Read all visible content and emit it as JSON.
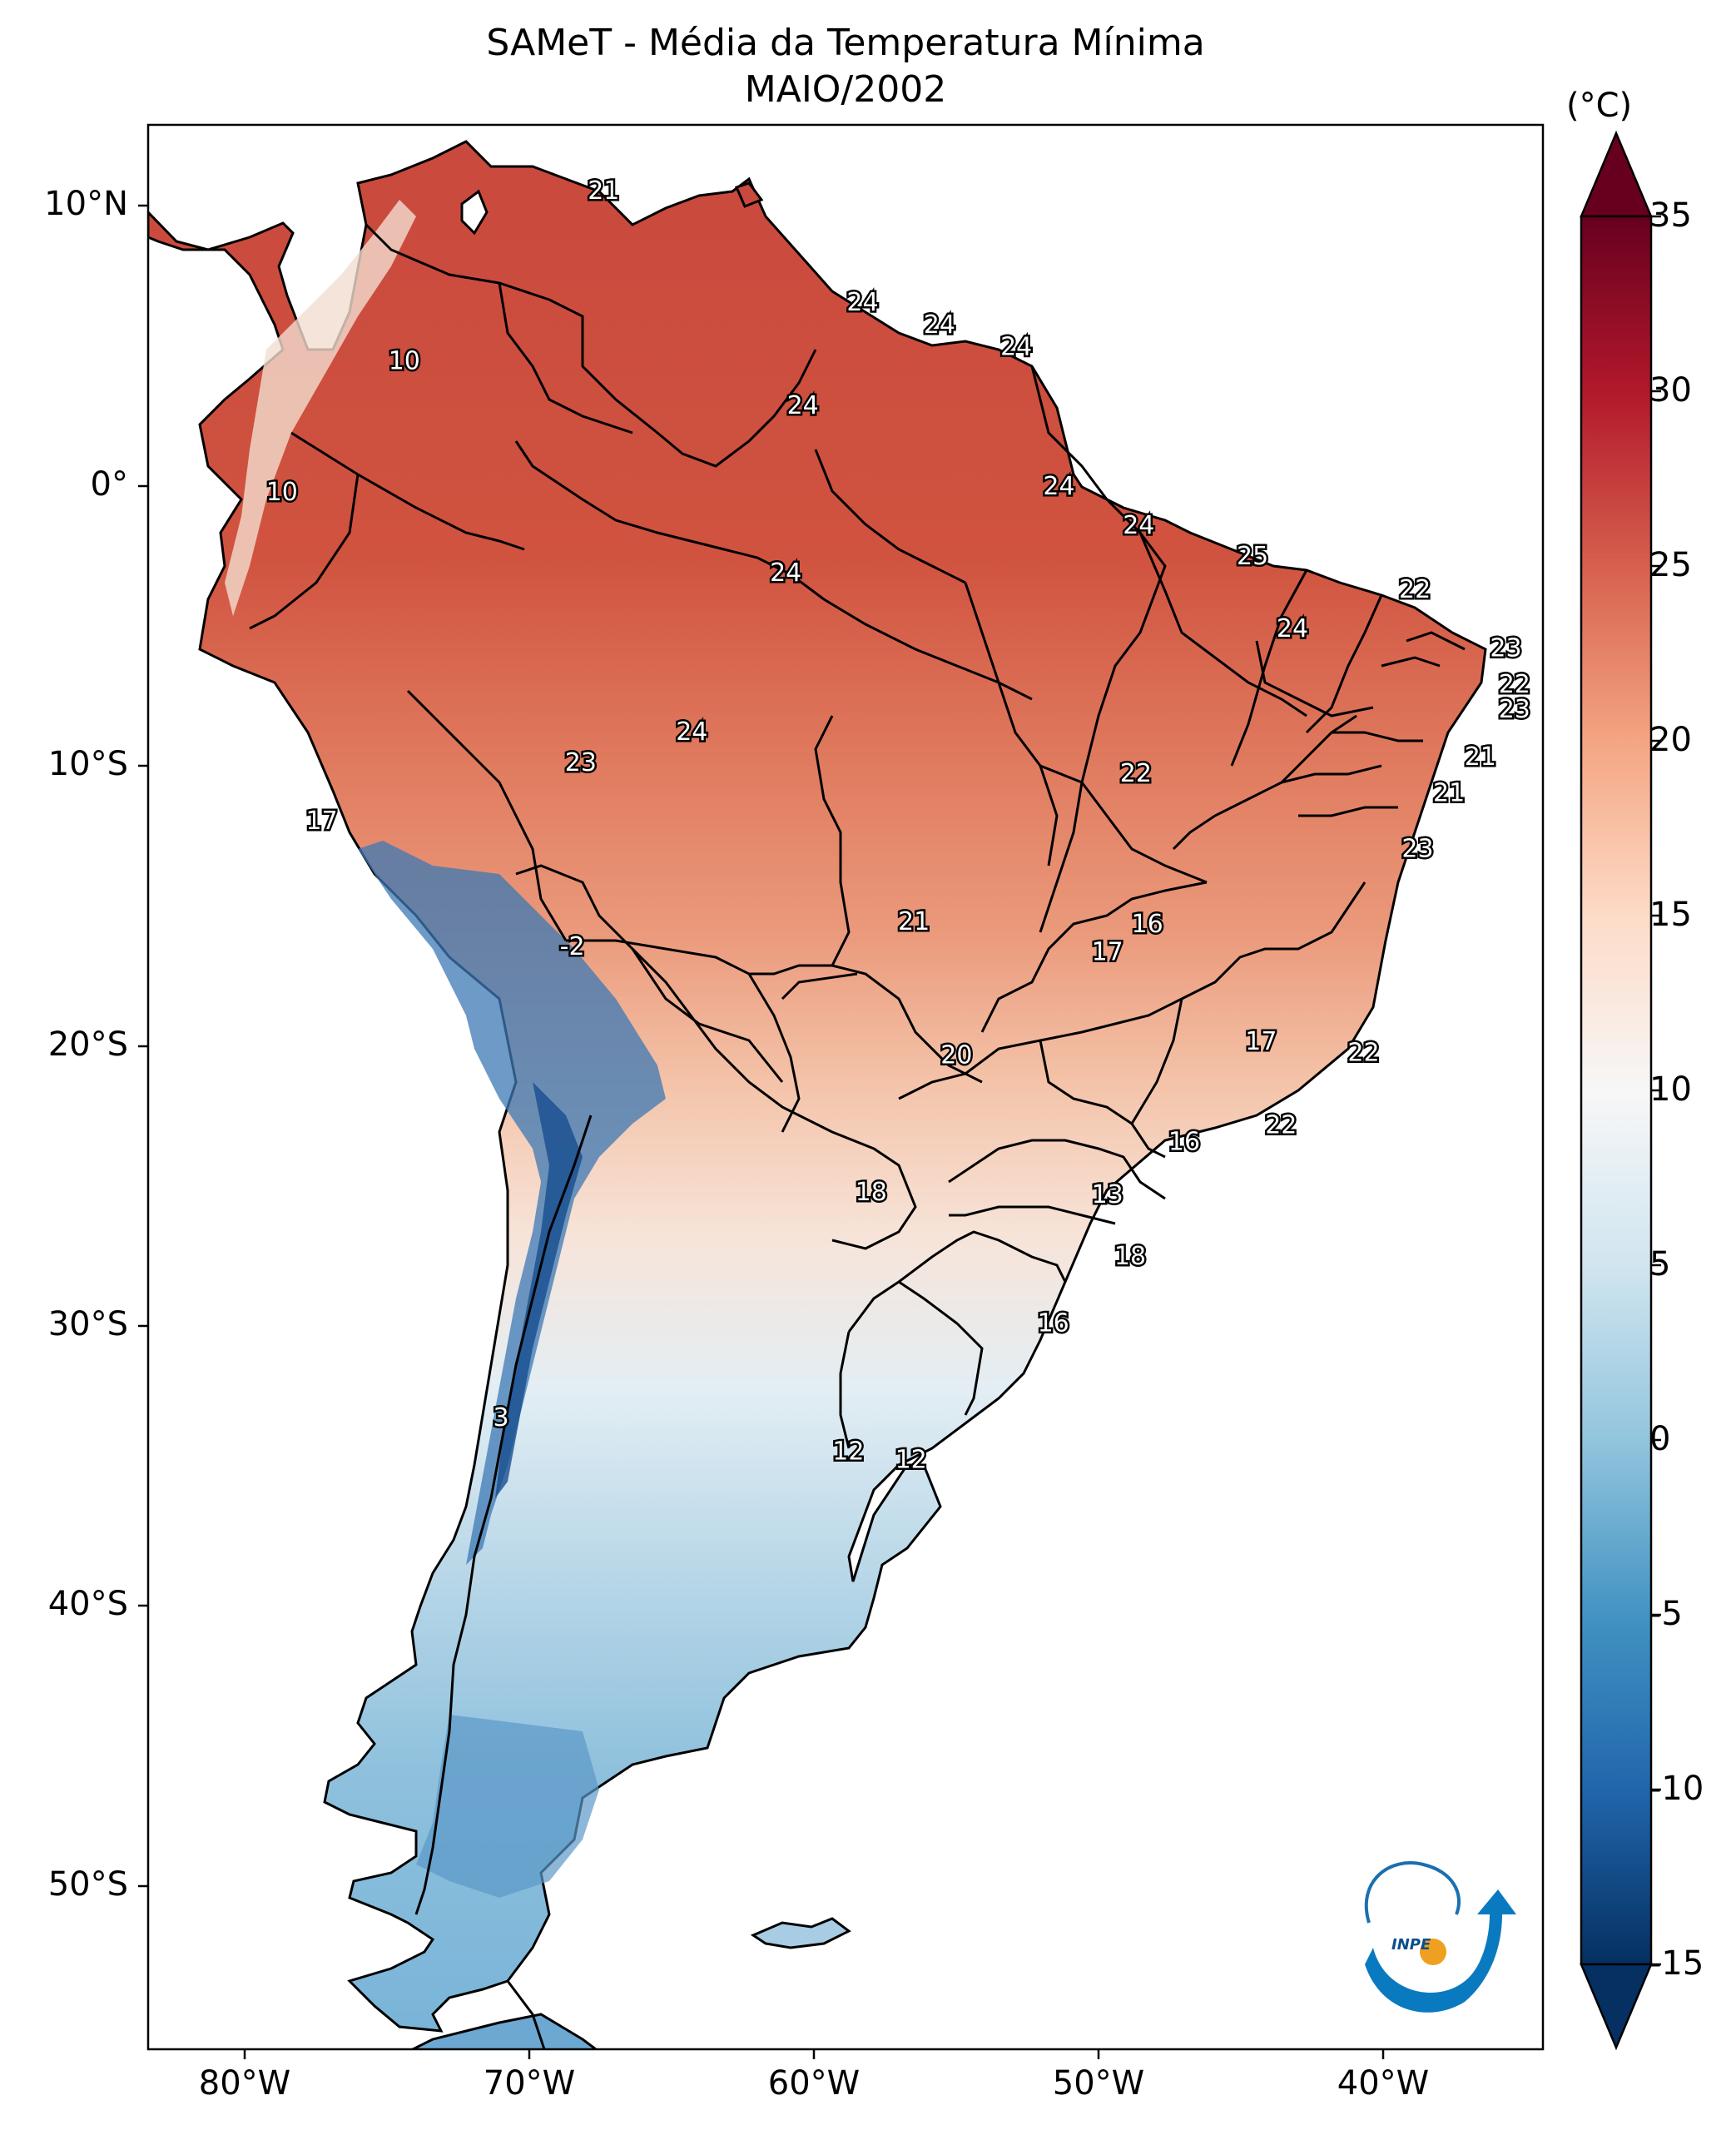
{
  "title": {
    "line1": "SAMeT - Média da Temperatura Mínima",
    "line2": "MAIO/2002"
  },
  "colorbar": {
    "unit": "(°C)",
    "ticks": [
      "35",
      "30",
      "25",
      "20",
      "15",
      "10",
      "5",
      "0",
      "-5",
      "-10",
      "-15"
    ]
  },
  "axes": {
    "lat_ticks": [
      "10°N",
      "0°",
      "10°S",
      "20°S",
      "30°S",
      "40°S",
      "50°S"
    ],
    "lon_ticks": [
      "80°W",
      "70°W",
      "60°W",
      "50°W",
      "40°W"
    ]
  },
  "logo": {
    "text": "INPE"
  },
  "chart_data": {
    "type": "heatmap",
    "title": "SAMeT - Média da Temperatura Mínima MAIO/2002",
    "variable": "mean minimum temperature",
    "units": "°C",
    "colorbar_range": [
      -15,
      35
    ],
    "colormap": "RdBu_r",
    "lon_range": [
      -83,
      -34
    ],
    "lat_range": [
      -56,
      13
    ],
    "station_labels": [
      {
        "value": "21",
        "lon": -67.0,
        "lat": 10.6
      },
      {
        "value": "10",
        "lon": -74.0,
        "lat": 4.5
      },
      {
        "value": "24",
        "lon": -57.9,
        "lat": 6.6
      },
      {
        "value": "24",
        "lon": -55.2,
        "lat": 5.8
      },
      {
        "value": "24",
        "lon": -52.5,
        "lat": 5.0
      },
      {
        "value": "24",
        "lon": -60.0,
        "lat": 2.9
      },
      {
        "value": "10",
        "lon": -78.3,
        "lat": -0.2
      },
      {
        "value": "24",
        "lon": -51.0,
        "lat": 0.0
      },
      {
        "value": "24",
        "lon": -48.2,
        "lat": -1.4
      },
      {
        "value": "25",
        "lon": -44.2,
        "lat": -2.5
      },
      {
        "value": "24",
        "lon": -60.6,
        "lat": -3.1
      },
      {
        "value": "22",
        "lon": -38.5,
        "lat": -3.7
      },
      {
        "value": "24",
        "lon": -42.8,
        "lat": -5.1
      },
      {
        "value": "23",
        "lon": -35.3,
        "lat": -5.8
      },
      {
        "value": "22",
        "lon": -35.0,
        "lat": -7.1
      },
      {
        "value": "23",
        "lon": -35.0,
        "lat": -8.0
      },
      {
        "value": "24",
        "lon": -63.9,
        "lat": -8.8
      },
      {
        "value": "21",
        "lon": -36.2,
        "lat": -9.7
      },
      {
        "value": "23",
        "lon": -67.8,
        "lat": -9.9
      },
      {
        "value": "22",
        "lon": -48.3,
        "lat": -10.3
      },
      {
        "value": "21",
        "lon": -37.3,
        "lat": -11.0
      },
      {
        "value": "17",
        "lon": -76.9,
        "lat": -12.0
      },
      {
        "value": "23",
        "lon": -38.4,
        "lat": -13.0
      },
      {
        "value": "21",
        "lon": -56.1,
        "lat": -15.6
      },
      {
        "value": "16",
        "lon": -47.9,
        "lat": -15.7
      },
      {
        "value": "-2",
        "lon": -68.1,
        "lat": -16.5
      },
      {
        "value": "17",
        "lon": -49.3,
        "lat": -16.7
      },
      {
        "value": "17",
        "lon": -43.9,
        "lat": -19.9
      },
      {
        "value": "20",
        "lon": -54.6,
        "lat": -20.4
      },
      {
        "value": "22",
        "lon": -40.3,
        "lat": -20.3
      },
      {
        "value": "22",
        "lon": -43.2,
        "lat": -22.9
      },
      {
        "value": "16",
        "lon": -46.6,
        "lat": -23.5
      },
      {
        "value": "18",
        "lon": -57.6,
        "lat": -25.3
      },
      {
        "value": "13",
        "lon": -49.3,
        "lat": -25.4
      },
      {
        "value": "18",
        "lon": -48.5,
        "lat": -27.6
      },
      {
        "value": "16",
        "lon": -51.2,
        "lat": -30.0
      },
      {
        "value": "3",
        "lon": -70.6,
        "lat": -33.4
      },
      {
        "value": "12",
        "lon": -58.4,
        "lat": -34.6
      },
      {
        "value": "12",
        "lon": -56.2,
        "lat": -34.9
      }
    ]
  }
}
